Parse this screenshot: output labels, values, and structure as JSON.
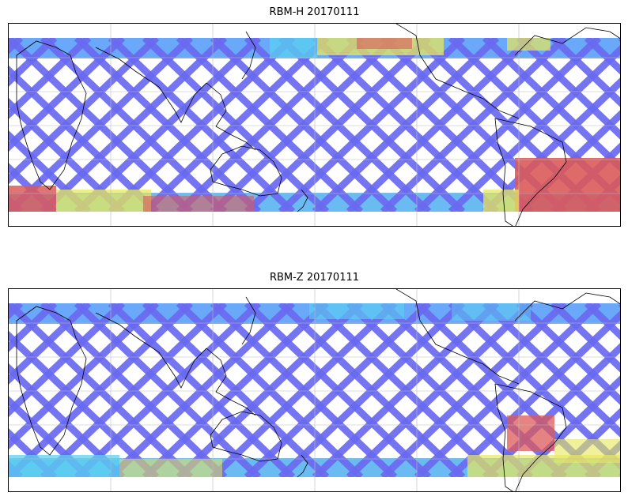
{
  "panels": [
    {
      "title": "RBM-H 20170111",
      "colors": {
        "low": "#6a6af0",
        "mid": "#5ad2f0",
        "high": "#e8e85a",
        "peak": "#dc5a5a"
      }
    },
    {
      "title": "RBM-Z 20170111",
      "colors": {
        "low": "#6a6af0",
        "mid": "#5ad2f0",
        "high": "#e8e85a",
        "peak": "#dc5a5a"
      }
    }
  ]
}
